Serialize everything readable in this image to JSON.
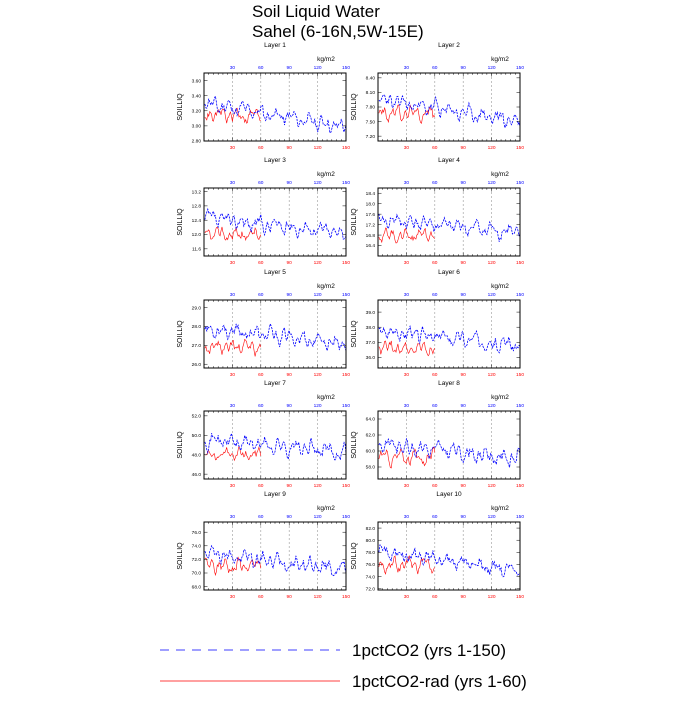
{
  "title_line1": "Soil Liquid Water",
  "title_line2": "Sahel (6-16N,5W-15E)",
  "units": "kg/m2",
  "ylabel": "SOILLIQ",
  "colors": {
    "series_a": "#0000ff",
    "series_b": "#ff0000",
    "grid": "#999999"
  },
  "legend": [
    {
      "label": "1pctCO2 (yrs 1-150)",
      "color": "#0000ff",
      "style": "dashed"
    },
    {
      "label": "1pctCO2-rad (yrs 1-60)",
      "color": "#ff0000",
      "style": "solid"
    }
  ],
  "chart_data": [
    {
      "type": "line",
      "title": "Layer 1",
      "xlim": [
        0,
        150
      ],
      "xticks": [
        30,
        60,
        90,
        120,
        150
      ],
      "ylim": [
        2.8,
        3.7
      ],
      "yticks": [
        "2.80",
        "3.00",
        "3.20",
        "3.40",
        "3.60"
      ],
      "blue_base": 3.3,
      "blue_end": 2.98,
      "red_base": 3.14,
      "amp": 0.14,
      "seed": 11
    },
    {
      "type": "line",
      "title": "Layer 2",
      "xlim": [
        0,
        150
      ],
      "xticks": [
        30,
        60,
        90,
        120,
        150
      ],
      "ylim": [
        7.1,
        8.5
      ],
      "yticks": [
        "7.20",
        "7.50",
        "7.80",
        "8.10",
        "8.40"
      ],
      "blue_base": 7.95,
      "blue_end": 7.5,
      "red_base": 7.68,
      "amp": 0.22,
      "seed": 23
    },
    {
      "type": "line",
      "title": "Layer 3",
      "xlim": [
        0,
        150
      ],
      "xticks": [
        30,
        60,
        90,
        120,
        150
      ],
      "ylim": [
        11.4,
        13.3
      ],
      "yticks": [
        "11.6",
        "12.0",
        "12.4",
        "12.8",
        "13.2"
      ],
      "blue_base": 12.45,
      "blue_end": 12.05,
      "red_base": 12.0,
      "amp": 0.3,
      "seed": 37
    },
    {
      "type": "line",
      "title": "Layer 4",
      "xlim": [
        0,
        150
      ],
      "xticks": [
        30,
        60,
        90,
        120,
        150
      ],
      "ylim": [
        16.0,
        18.6
      ],
      "yticks": [
        "16.4",
        "16.8",
        "17.2",
        "17.6",
        "18.0",
        "18.4"
      ],
      "blue_base": 17.4,
      "blue_end": 16.9,
      "red_base": 16.8,
      "amp": 0.4,
      "seed": 41
    },
    {
      "type": "line",
      "title": "Layer 5",
      "xlim": [
        0,
        150
      ],
      "xticks": [
        30,
        60,
        90,
        120,
        150
      ],
      "ylim": [
        25.8,
        29.4
      ],
      "yticks": [
        "26.0",
        "27.0",
        "28.0",
        "29.0"
      ],
      "blue_base": 27.9,
      "blue_end": 27.1,
      "red_base": 26.9,
      "amp": 0.55,
      "seed": 53
    },
    {
      "type": "line",
      "title": "Layer 6",
      "xlim": [
        0,
        150
      ],
      "xticks": [
        30,
        60,
        90,
        120,
        150
      ],
      "ylim": [
        35.3,
        39.8
      ],
      "yticks": [
        "36.0",
        "37.0",
        "38.0",
        "39.0"
      ],
      "blue_base": 37.8,
      "blue_end": 36.8,
      "red_base": 36.6,
      "amp": 0.7,
      "seed": 67
    },
    {
      "type": "line",
      "title": "Layer 7",
      "xlim": [
        0,
        150
      ],
      "xticks": [
        30,
        60,
        90,
        120,
        150
      ],
      "ylim": [
        45.5,
        52.5
      ],
      "yticks": [
        "46.0",
        "48.0",
        "50.0",
        "52.0"
      ],
      "blue_base": 49.6,
      "blue_end": 48.2,
      "red_base": 48.0,
      "amp": 1.1,
      "seed": 71
    },
    {
      "type": "line",
      "title": "Layer 8",
      "xlim": [
        0,
        150
      ],
      "xticks": [
        30,
        60,
        90,
        120,
        150
      ],
      "ylim": [
        56.5,
        65.0
      ],
      "yticks": [
        "58.0",
        "60.0",
        "62.0",
        "64.0"
      ],
      "blue_base": 61.0,
      "blue_end": 59.0,
      "red_base": 59.2,
      "amp": 1.35,
      "seed": 83
    },
    {
      "type": "line",
      "title": "Layer 9",
      "xlim": [
        0,
        150
      ],
      "xticks": [
        30,
        60,
        90,
        120,
        150
      ],
      "ylim": [
        67.5,
        77.5
      ],
      "yticks": [
        "68.0",
        "70.0",
        "72.0",
        "74.0",
        "76.0"
      ],
      "blue_base": 73.0,
      "blue_end": 70.5,
      "red_base": 71.0,
      "amp": 1.6,
      "seed": 97
    },
    {
      "type": "line",
      "title": "Layer 10",
      "xlim": [
        0,
        150
      ],
      "xticks": [
        30,
        60,
        90,
        120,
        150
      ],
      "ylim": [
        71.8,
        83.0
      ],
      "yticks": [
        "72.0",
        "74.0",
        "76.0",
        "78.0",
        "80.0",
        "82.0"
      ],
      "blue_base": 78.2,
      "blue_end": 75.0,
      "red_base": 76.0,
      "amp": 1.75,
      "seed": 101
    }
  ]
}
